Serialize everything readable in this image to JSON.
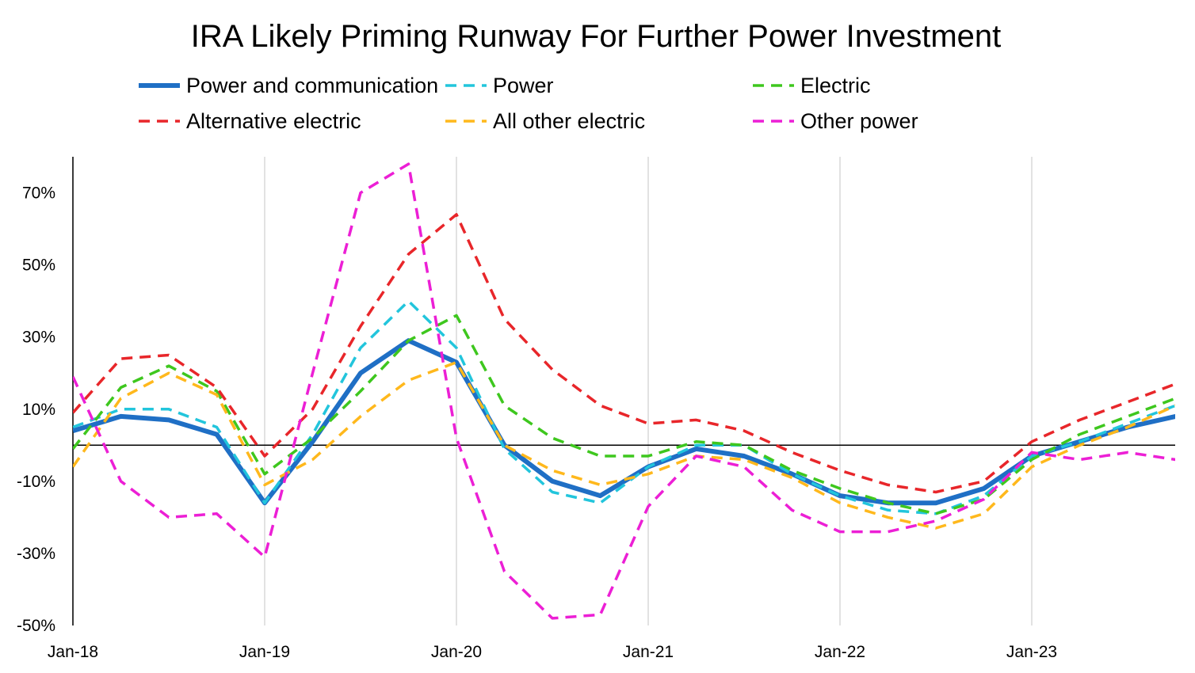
{
  "chart_data": {
    "type": "line",
    "title": "IRA Likely Priming Runway For Further Power Investment",
    "xlabel": "",
    "ylabel": "",
    "ylim": [
      -50,
      80
    ],
    "y_ticks": [
      "70%",
      "50%",
      "30%",
      "10%",
      "-10%",
      "-30%",
      "-50%"
    ],
    "y_tick_values": [
      70,
      50,
      30,
      10,
      -10,
      -30,
      -50
    ],
    "x_tick_labels": [
      "Jan-18",
      "Jan-19",
      "Jan-20",
      "Jan-21",
      "Jan-22",
      "Jan-23"
    ],
    "x_tick_index": [
      0,
      4,
      8,
      12,
      16,
      20
    ],
    "x_count": 24,
    "grid": "vertical at x ticks",
    "legend_placement": "top",
    "series": [
      {
        "name": "Power and communication",
        "color": "#1f6fc5",
        "style": "solid",
        "values": [
          4,
          8,
          7,
          3,
          -16,
          1,
          20,
          29,
          23,
          0,
          -10,
          -14,
          -6,
          -1,
          -3,
          -8,
          -14,
          -16,
          -16,
          -12,
          -3,
          1,
          5,
          8
        ]
      },
      {
        "name": "Power",
        "color": "#22c5dc",
        "style": "dashed",
        "values": [
          5,
          10,
          10,
          5,
          -16,
          3,
          27,
          40,
          27,
          -1,
          -13,
          -16,
          -6,
          0,
          0,
          -8,
          -14,
          -18,
          -19,
          -14,
          -3,
          1,
          6,
          11
        ]
      },
      {
        "name": "Electric",
        "color": "#3ec71e",
        "style": "dashed",
        "values": [
          -1,
          16,
          22,
          15,
          -8,
          2,
          15,
          29,
          36,
          11,
          2,
          -3,
          -3,
          1,
          0,
          -7,
          -12,
          -16,
          -19,
          -15,
          -4,
          3,
          8,
          13
        ]
      },
      {
        "name": "Alternative electric",
        "color": "#e8262a",
        "style": "dashed",
        "values": [
          9,
          24,
          25,
          16,
          -3,
          10,
          33,
          53,
          64,
          35,
          21,
          11,
          6,
          7,
          4,
          -2,
          -7,
          -11,
          -13,
          -10,
          1,
          7,
          12,
          17
        ]
      },
      {
        "name": "All other electric",
        "color": "#ffb81c",
        "style": "dashed",
        "values": [
          -6,
          13,
          20,
          14,
          -11,
          -4,
          8,
          18,
          23,
          0,
          -7,
          -11,
          -8,
          -3,
          -4,
          -9,
          -16,
          -20,
          -23,
          -19,
          -6,
          0,
          5,
          11
        ]
      },
      {
        "name": "Other power",
        "color": "#ec1fd5",
        "style": "dashed",
        "values": [
          19,
          -10,
          -20,
          -19,
          -31,
          20,
          70,
          78,
          2,
          -35,
          -48,
          -47,
          -17,
          -3,
          -6,
          -18,
          -24,
          -24,
          -21,
          -15,
          -2,
          -4,
          -2,
          -4
        ]
      }
    ]
  }
}
